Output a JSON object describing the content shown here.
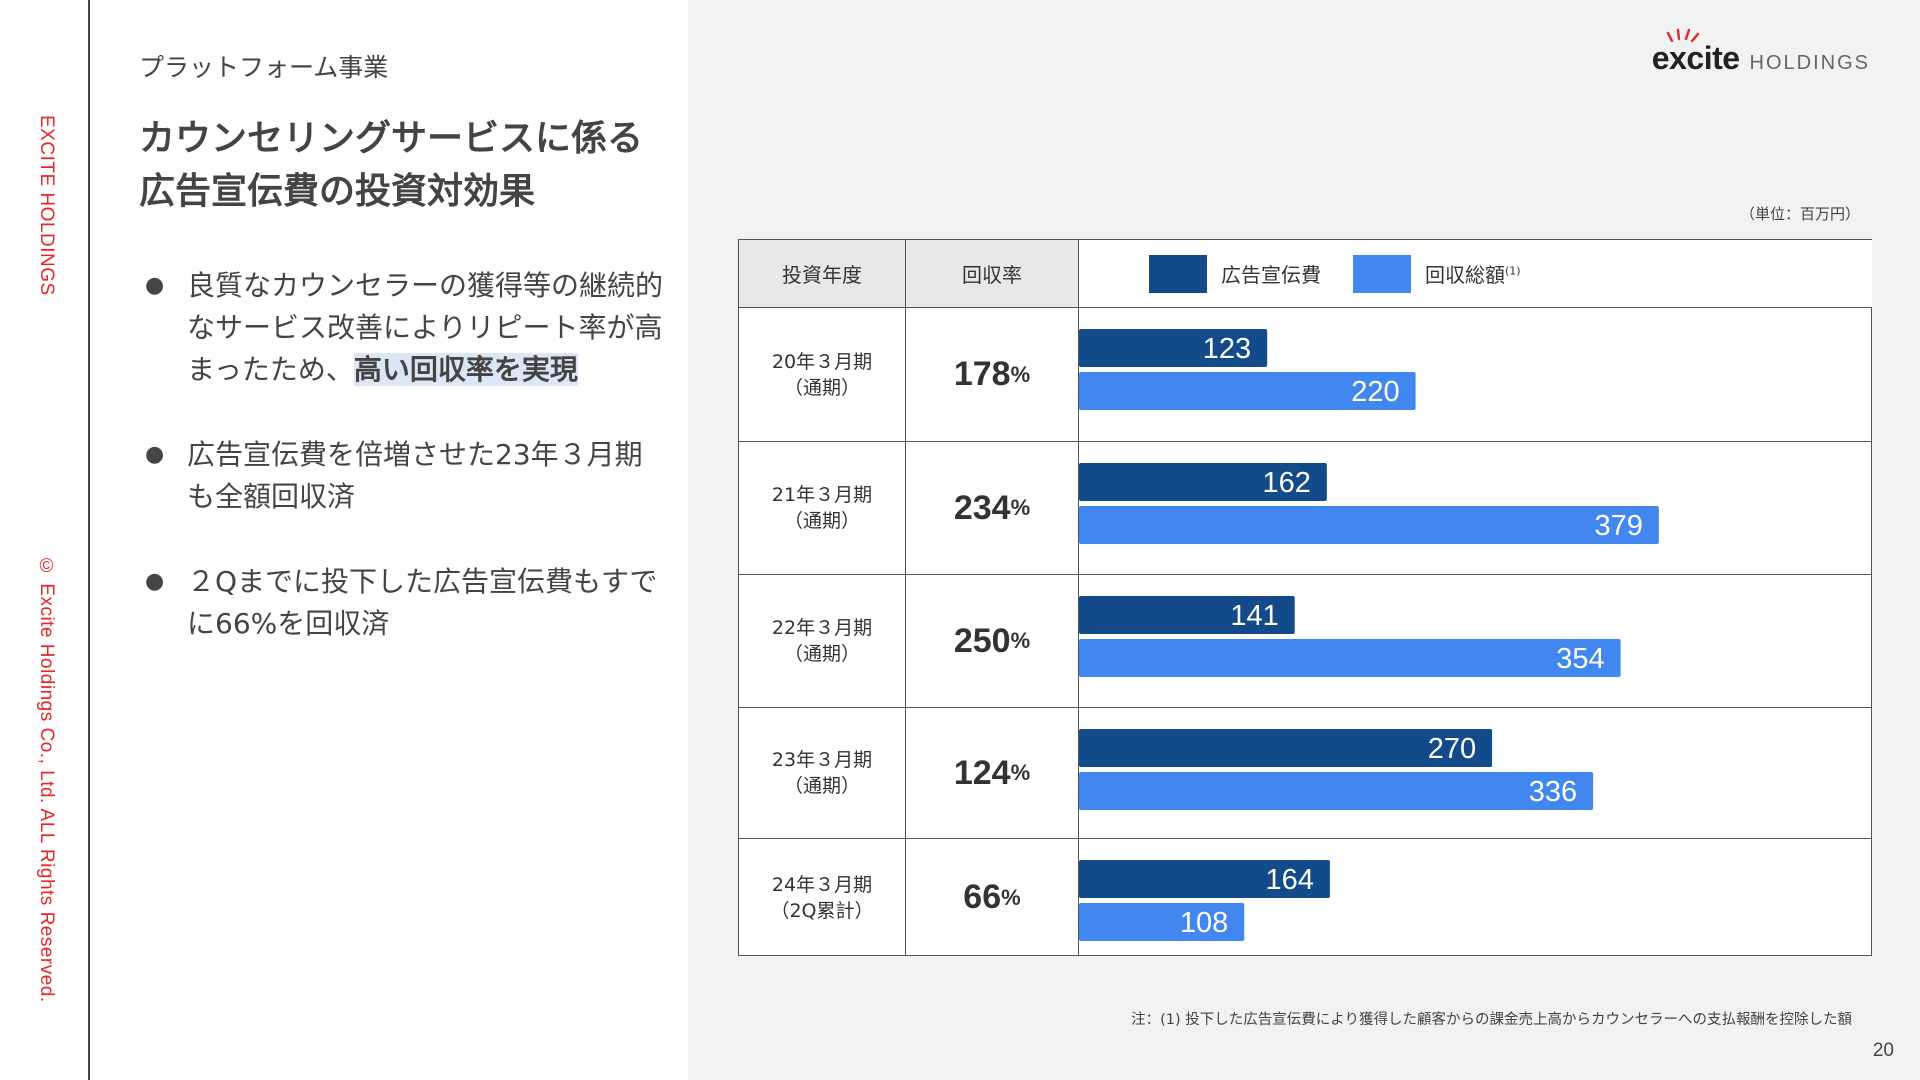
{
  "sidebar": {
    "company": "EXCITE HOLDINGS",
    "copyright": "© Excite Holdings Co., Ltd. ALL Rights Reserved."
  },
  "section_label": "プラットフォーム事業",
  "title": {
    "line1": "カウンセリングサービスに係る",
    "line2": "広告宣伝費の投資対効果"
  },
  "bullets": [
    {
      "text": "良質なカウンセラーの獲得等の継続的なサービス改善によりリピート率が高まったため、",
      "highlight": "高い回収率を実現"
    },
    {
      "text": "広告宣伝費を倍増させた23年３月期も全額回収済",
      "highlight": ""
    },
    {
      "text": "２Qまでに投下した広告宣伝費もすでに66%を回収済",
      "highlight": ""
    }
  ],
  "bullet_glyph": "●",
  "logo": {
    "word": "excite",
    "sub": "HOLDINGS"
  },
  "unit_label": "（単位：百万円）",
  "table": {
    "header_year": "投資年度",
    "header_rate": "回収率",
    "rows": [
      {
        "year_line1": "20年３月期",
        "year_line2": "（通期）",
        "rate": "178",
        "pct": "%"
      },
      {
        "year_line1": "21年３月期",
        "year_line2": "（通期）",
        "rate": "234",
        "pct": "%"
      },
      {
        "year_line1": "22年３月期",
        "year_line2": "（通期）",
        "rate": "250",
        "pct": "%"
      },
      {
        "year_line1": "23年３月期",
        "year_line2": "（通期）",
        "rate": "124",
        "pct": "%"
      },
      {
        "year_line1": "24年３月期",
        "year_line2": "（2Q累計）",
        "rate": "66",
        "pct": "%"
      }
    ]
  },
  "chart_data": {
    "type": "bar",
    "orientation": "horizontal",
    "categories": [
      "20年３月期（通期）",
      "21年３月期（通期）",
      "22年３月期（通期）",
      "23年３月期（通期）",
      "24年３月期（2Q累計）"
    ],
    "series": [
      {
        "name": "広告宣伝費",
        "values": [
          123,
          162,
          141,
          270,
          164
        ],
        "color": "#134a8a"
      },
      {
        "name": "回収総額",
        "name_sup": "(1)",
        "values": [
          220,
          379,
          354,
          336,
          108
        ],
        "color": "#4287f0"
      }
    ],
    "unit": "百万円",
    "data_labels": true
  },
  "footnote": "注：(1) 投下した広告宣伝費により獲得した顧客からの課金売上高からカウンセラーへの支払報酬を控除した額",
  "page_number": "20"
}
